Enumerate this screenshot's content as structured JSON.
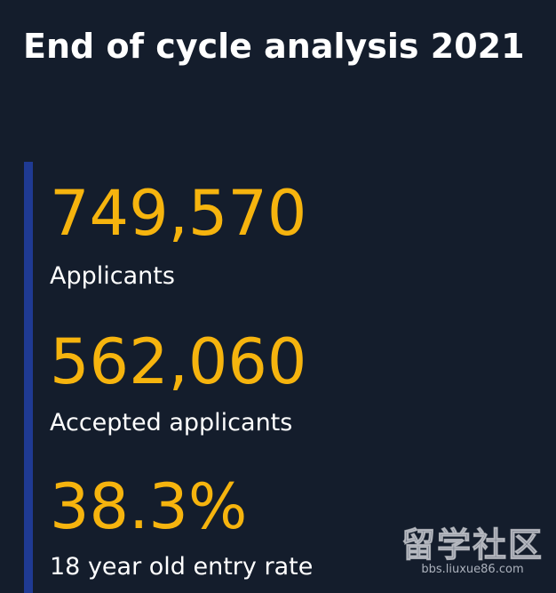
{
  "title": "End of cycle analysis 2021",
  "colors": {
    "background": "#141d2c",
    "accent_bar": "#1f3a93",
    "value": "#f6b40e",
    "label": "#ffffff"
  },
  "stats": [
    {
      "value": "749,570",
      "label": "Applicants"
    },
    {
      "value": "562,060",
      "label": "Accepted applicants"
    },
    {
      "value": "38.3%",
      "label": "18 year old entry rate"
    }
  ],
  "watermark": {
    "main": "留学社区",
    "sub": "bbs.liuxue86.com"
  }
}
